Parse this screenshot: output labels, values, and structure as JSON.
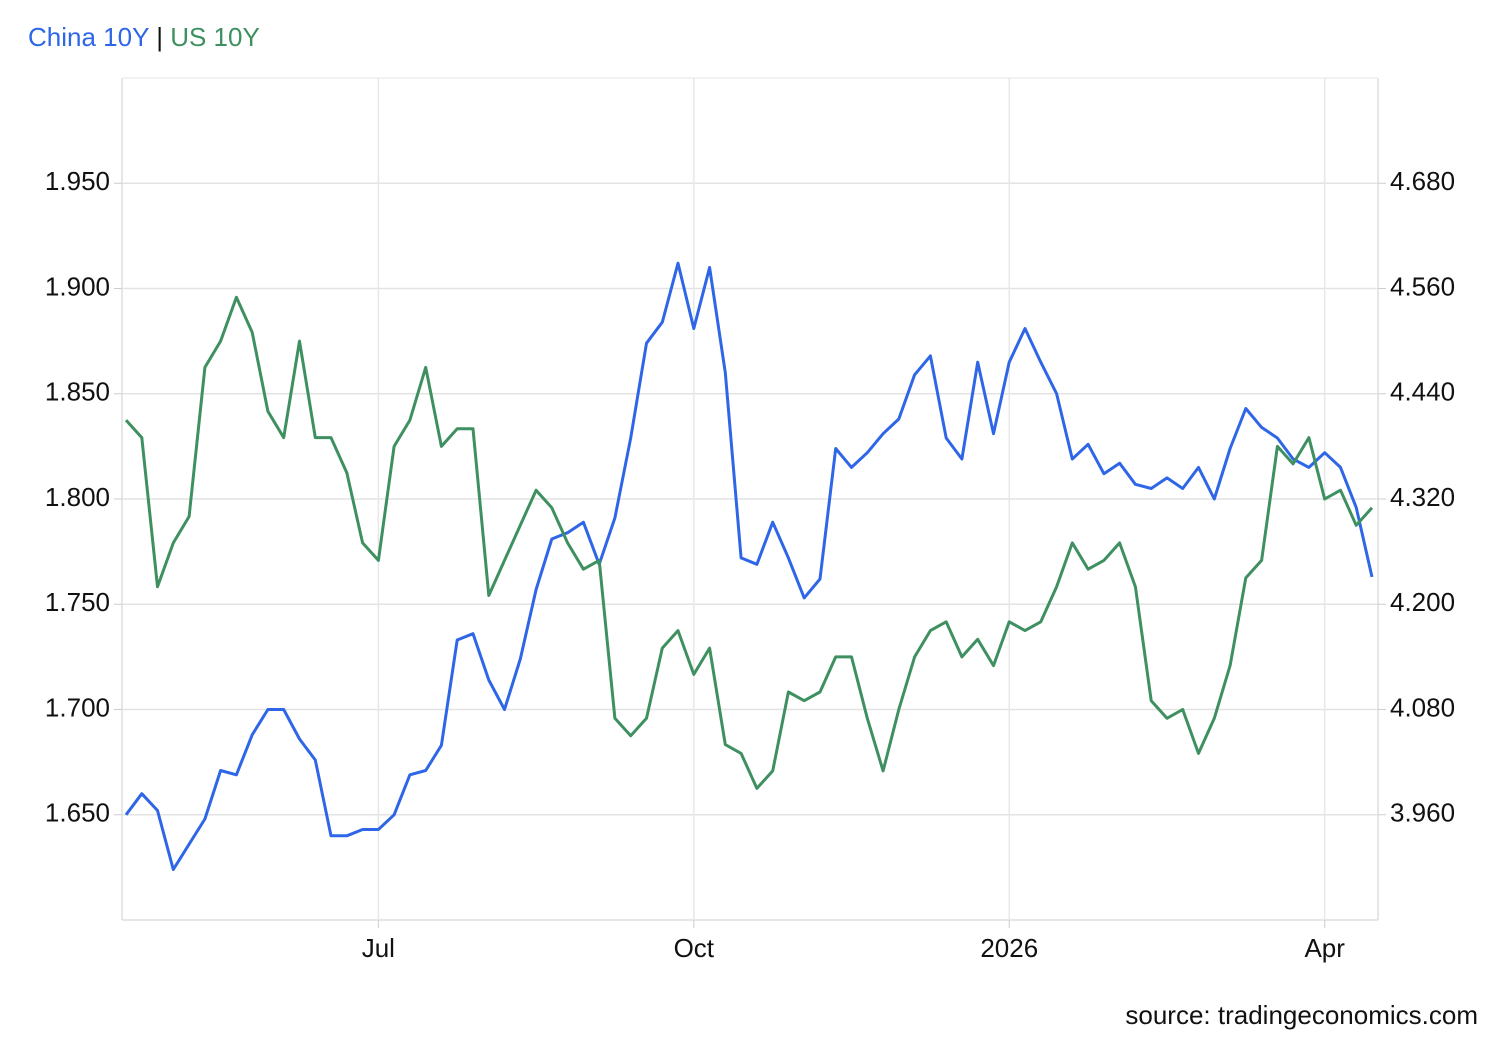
{
  "chart_data": {
    "type": "line",
    "title_separator": "|",
    "source": "source: tradingeconomics.com",
    "categories": [
      null,
      null,
      null,
      null,
      null,
      null,
      null,
      null,
      null,
      null,
      null,
      null,
      null,
      null,
      null,
      null,
      "Jul",
      null,
      null,
      null,
      null,
      null,
      null,
      null,
      null,
      null,
      null,
      null,
      null,
      null,
      null,
      null,
      null,
      null,
      null,
      null,
      "Oct",
      null,
      null,
      null,
      null,
      null,
      null,
      null,
      null,
      null,
      null,
      null,
      null,
      null,
      null,
      null,
      null,
      null,
      null,
      null,
      "2026",
      null,
      null,
      null,
      null,
      null,
      null,
      null,
      null,
      null,
      null,
      null,
      null,
      null,
      null,
      null,
      null,
      null,
      null,
      null,
      "Apr",
      null,
      null,
      null
    ],
    "series": [
      {
        "name": "China 10Y",
        "color": "#2f66e8",
        "axis": "y",
        "values": [
          1.65,
          1.66,
          1.652,
          1.624,
          1.636,
          1.648,
          1.671,
          1.669,
          1.688,
          1.7,
          1.7,
          1.686,
          1.676,
          1.64,
          1.64,
          1.643,
          1.643,
          1.65,
          1.669,
          1.671,
          1.683,
          1.733,
          1.736,
          1.714,
          1.7,
          1.724,
          1.757,
          1.781,
          1.784,
          1.789,
          1.769,
          1.791,
          1.829,
          1.874,
          1.884,
          1.912,
          1.881,
          1.91,
          1.86,
          1.772,
          1.769,
          1.789,
          1.772,
          1.753,
          1.762,
          1.824,
          1.815,
          1.822,
          1.831,
          1.838,
          1.859,
          1.868,
          1.829,
          1.819,
          1.865,
          1.831,
          1.865,
          1.881,
          1.865,
          1.85,
          1.819,
          1.826,
          1.812,
          1.817,
          1.807,
          1.805,
          1.81,
          1.805,
          1.815,
          1.8,
          1.824,
          1.843,
          1.834,
          1.829,
          1.819,
          1.815,
          1.822,
          1.815,
          1.796,
          1.763
        ]
      },
      {
        "name": "US 10Y",
        "color": "#3f9060",
        "axis": "y2",
        "values": [
          4.41,
          4.39,
          4.22,
          4.27,
          4.3,
          4.47,
          4.5,
          4.55,
          4.51,
          4.42,
          4.39,
          4.5,
          4.39,
          4.39,
          4.35,
          4.27,
          4.25,
          4.38,
          4.41,
          4.47,
          4.38,
          4.4,
          4.4,
          4.21,
          4.25,
          4.29,
          4.33,
          4.31,
          4.27,
          4.24,
          4.25,
          4.07,
          4.05,
          4.07,
          4.15,
          4.17,
          4.12,
          4.15,
          4.04,
          4.03,
          3.99,
          4.01,
          4.1,
          4.09,
          4.1,
          4.14,
          4.14,
          4.07,
          4.01,
          4.08,
          4.14,
          4.17,
          4.18,
          4.14,
          4.16,
          4.13,
          4.18,
          4.17,
          4.18,
          4.22,
          4.27,
          4.24,
          4.25,
          4.27,
          4.22,
          4.09,
          4.07,
          4.08,
          4.03,
          4.07,
          4.13,
          4.23,
          4.25,
          4.38,
          4.36,
          4.39,
          4.32,
          4.33,
          4.29,
          4.31
        ]
      }
    ],
    "ylim": [
      1.6,
      2.0
    ],
    "yticks": [
      {
        "value": 1.65,
        "label": "1.650"
      },
      {
        "value": 1.7,
        "label": "1.700"
      },
      {
        "value": 1.75,
        "label": "1.750"
      },
      {
        "value": 1.8,
        "label": "1.800"
      },
      {
        "value": 1.85,
        "label": "1.850"
      },
      {
        "value": 1.9,
        "label": "1.900"
      },
      {
        "value": 1.95,
        "label": "1.950"
      }
    ],
    "y2lim": [
      3.84,
      4.8
    ],
    "y2ticks": [
      {
        "value": 3.96,
        "label": "3.960"
      },
      {
        "value": 4.08,
        "label": "4.080"
      },
      {
        "value": 4.2,
        "label": "4.200"
      },
      {
        "value": 4.32,
        "label": "4.320"
      },
      {
        "value": 4.44,
        "label": "4.440"
      },
      {
        "value": 4.56,
        "label": "4.560"
      },
      {
        "value": 4.68,
        "label": "4.680"
      }
    ],
    "grid": true
  }
}
